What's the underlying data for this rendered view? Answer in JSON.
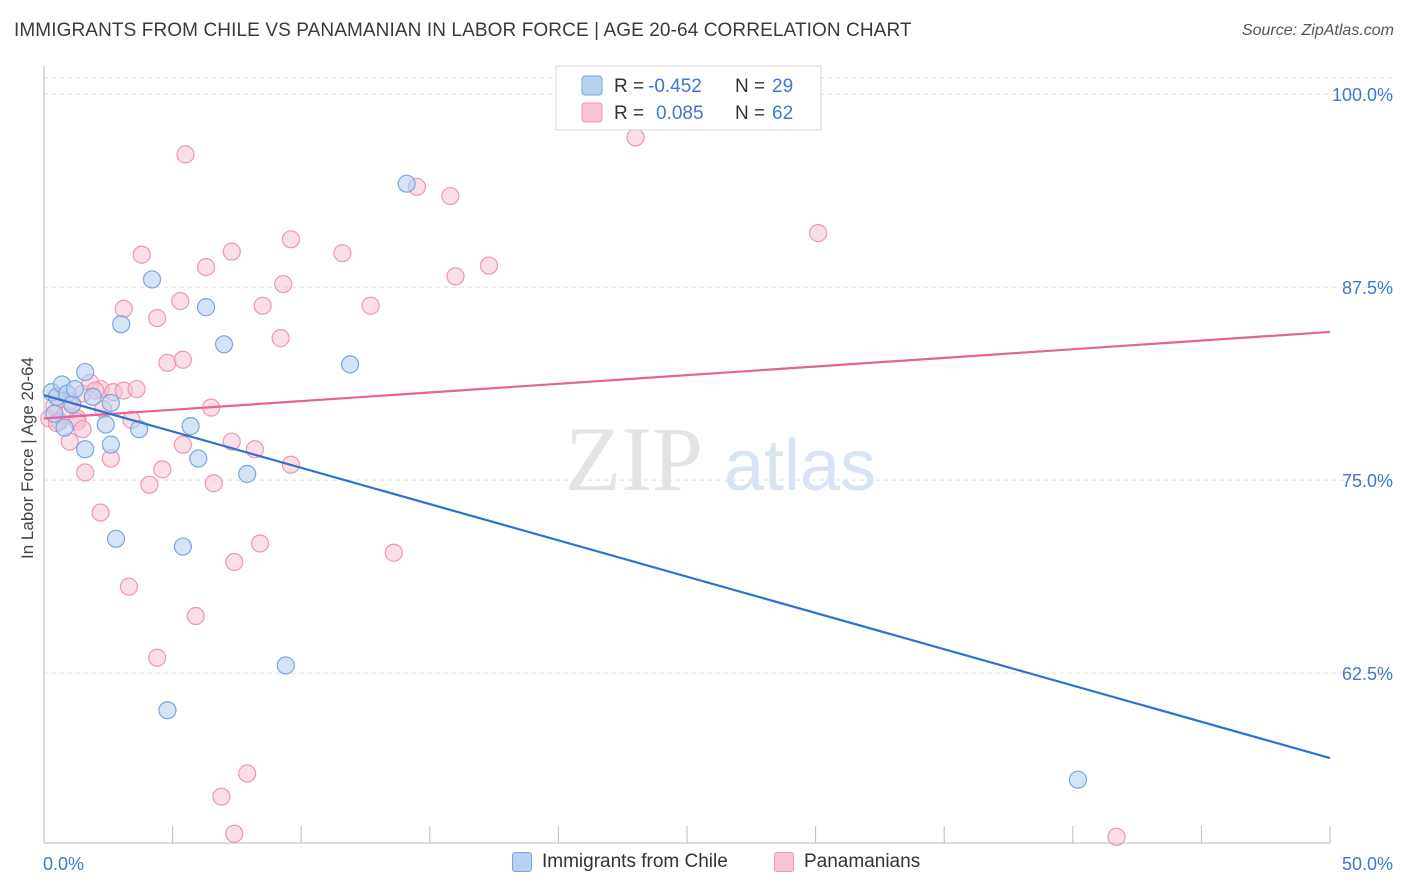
{
  "title": "IMMIGRANTS FROM CHILE VS PANAMANIAN IN LABOR FORCE | AGE 20-64 CORRELATION CHART",
  "source": "Source: ZipAtlas.com",
  "watermark": {
    "zip": "ZIP",
    "atlas": "atlas"
  },
  "legend_top": {
    "rows": [
      {
        "r_label": "R =",
        "r_value": "-0.452",
        "n_label": "N =",
        "n_value": "29"
      },
      {
        "r_label": "R =",
        "r_value": "0.085",
        "n_label": "N =",
        "n_value": "62"
      }
    ]
  },
  "legend_bottom": {
    "items": [
      {
        "label": "Immigrants from Chile"
      },
      {
        "label": "Panamanians"
      }
    ]
  },
  "colors": {
    "blue_fill": "#b8d1f2",
    "blue_stroke": "#7aa6df",
    "blue_line": "#2f72d0",
    "pink_fill": "#f7c3d4",
    "pink_stroke": "#ec97b5",
    "pink_line": "#e2649a",
    "value_text": "#3f78cc",
    "grid": "#dddddd"
  },
  "chart_data": {
    "type": "scatter",
    "title": "IMMIGRANTS FROM CHILE VS PANAMANIAN IN LABOR FORCE | AGE 20-64 CORRELATION CHART",
    "xlabel": "",
    "ylabel": "In Labor Force | Age 20-64",
    "xlim": [
      0,
      50
    ],
    "ylim": [
      51.5,
      101.5
    ],
    "x_tick_labels": [
      "0.0%",
      "50.0%"
    ],
    "y_ticks": [
      62.5,
      75.0,
      87.5,
      100.0
    ],
    "y_tick_labels": [
      "62.5%",
      "75.0%",
      "87.5%",
      "100.0%"
    ],
    "grid": true,
    "legend_position": "top-center",
    "series": [
      {
        "name": "Immigrants from Chile",
        "color": "#7aa6df",
        "points": [
          [
            0.3,
            80.7
          ],
          [
            0.5,
            80.4
          ],
          [
            0.7,
            81.2
          ],
          [
            0.9,
            80.6
          ],
          [
            1.1,
            79.9
          ],
          [
            1.6,
            82.0
          ],
          [
            2.4,
            78.6
          ],
          [
            3.7,
            78.3
          ],
          [
            5.7,
            78.5
          ],
          [
            1.6,
            77.0
          ],
          [
            2.6,
            77.3
          ],
          [
            6.0,
            76.4
          ],
          [
            7.9,
            75.4
          ],
          [
            2.8,
            71.2
          ],
          [
            5.4,
            70.7
          ],
          [
            3.0,
            85.1
          ],
          [
            4.2,
            88.0
          ],
          [
            6.3,
            86.2
          ],
          [
            7.0,
            83.8
          ],
          [
            11.9,
            82.5
          ],
          [
            14.1,
            94.2
          ],
          [
            9.4,
            63.0
          ],
          [
            4.8,
            60.1
          ],
          [
            40.2,
            55.6
          ],
          [
            0.4,
            79.3
          ],
          [
            1.2,
            80.9
          ],
          [
            1.9,
            80.4
          ],
          [
            2.6,
            80.0
          ],
          [
            0.8,
            78.4
          ]
        ],
        "trend": {
          "x": [
            0,
            50
          ],
          "y": [
            80.5,
            57.0
          ]
        }
      },
      {
        "name": "Panamanians",
        "color": "#ec97b5",
        "points": [
          [
            0.2,
            79.0
          ],
          [
            0.4,
            79.8
          ],
          [
            0.6,
            78.8
          ],
          [
            0.8,
            79.2
          ],
          [
            1.0,
            80.1
          ],
          [
            1.3,
            79.0
          ],
          [
            1.5,
            80.6
          ],
          [
            1.8,
            81.3
          ],
          [
            2.2,
            80.9
          ],
          [
            2.7,
            80.7
          ],
          [
            3.1,
            80.8
          ],
          [
            3.6,
            80.9
          ],
          [
            0.5,
            78.7
          ],
          [
            1.0,
            77.5
          ],
          [
            1.6,
            75.5
          ],
          [
            2.6,
            76.4
          ],
          [
            4.1,
            74.7
          ],
          [
            4.6,
            75.7
          ],
          [
            5.4,
            77.3
          ],
          [
            6.5,
            79.7
          ],
          [
            7.3,
            77.5
          ],
          [
            8.2,
            77.0
          ],
          [
            9.6,
            76.0
          ],
          [
            6.6,
            74.8
          ],
          [
            2.2,
            72.9
          ],
          [
            3.3,
            68.1
          ],
          [
            5.9,
            66.2
          ],
          [
            7.4,
            69.7
          ],
          [
            8.4,
            70.9
          ],
          [
            13.6,
            70.3
          ],
          [
            4.4,
            63.5
          ],
          [
            6.9,
            54.5
          ],
          [
            7.4,
            52.1
          ],
          [
            7.9,
            56.0
          ],
          [
            41.7,
            51.9
          ],
          [
            4.8,
            82.6
          ],
          [
            5.4,
            82.8
          ],
          [
            4.4,
            85.5
          ],
          [
            3.1,
            86.1
          ],
          [
            5.3,
            86.6
          ],
          [
            8.5,
            86.3
          ],
          [
            9.2,
            84.2
          ],
          [
            12.7,
            86.3
          ],
          [
            6.3,
            88.8
          ],
          [
            7.3,
            89.8
          ],
          [
            3.8,
            89.6
          ],
          [
            9.3,
            87.7
          ],
          [
            9.6,
            90.6
          ],
          [
            11.6,
            89.7
          ],
          [
            16.0,
            88.2
          ],
          [
            17.3,
            88.9
          ],
          [
            14.5,
            94.0
          ],
          [
            15.8,
            93.4
          ],
          [
            30.1,
            91.0
          ],
          [
            5.5,
            96.1
          ],
          [
            23.0,
            97.2
          ],
          [
            1.3,
            78.8
          ],
          [
            2.3,
            79.6
          ],
          [
            3.4,
            78.9
          ],
          [
            2.0,
            80.8
          ],
          [
            0.6,
            80.3
          ],
          [
            1.5,
            78.3
          ]
        ],
        "trend": {
          "x": [
            0,
            50
          ],
          "y": [
            79.0,
            84.6
          ]
        }
      }
    ]
  }
}
